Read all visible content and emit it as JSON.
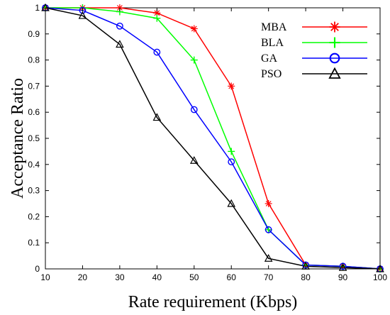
{
  "chart_data": {
    "type": "line",
    "xlabel": "Rate requirement (Kbps)",
    "ylabel": "Acceptance Ratio",
    "x": [
      10,
      20,
      30,
      40,
      50,
      60,
      70,
      80,
      90,
      100
    ],
    "xlim": [
      10,
      100
    ],
    "ylim": [
      0,
      1
    ],
    "xticks": [
      "10",
      "20",
      "30",
      "40",
      "50",
      "60",
      "70",
      "80",
      "90",
      "100"
    ],
    "yticks": [
      "0",
      "0.1",
      "0.2",
      "0.3",
      "0.4",
      "0.5",
      "0.6",
      "0.7",
      "0.8",
      "0.9",
      "1"
    ],
    "grid": false,
    "legend_position": "top-right",
    "series": [
      {
        "name": "MBA",
        "color": "#ff0000",
        "marker": "asterisk",
        "values": [
          1.0,
          1.0,
          1.0,
          0.98,
          0.92,
          0.7,
          0.25,
          0.015,
          0.01,
          0.0
        ]
      },
      {
        "name": "BLA",
        "color": "#00ff00",
        "marker": "plus",
        "values": [
          1.0,
          1.0,
          0.985,
          0.96,
          0.8,
          0.45,
          0.15,
          0.015,
          0.01,
          0.0
        ]
      },
      {
        "name": "GA",
        "color": "#0000ff",
        "marker": "circle",
        "values": [
          1.0,
          0.99,
          0.93,
          0.83,
          0.61,
          0.41,
          0.15,
          0.015,
          0.01,
          0.0
        ]
      },
      {
        "name": "PSO",
        "color": "#000000",
        "marker": "triangle",
        "values": [
          1.0,
          0.97,
          0.86,
          0.58,
          0.415,
          0.25,
          0.04,
          0.01,
          0.005,
          0.0
        ]
      }
    ]
  }
}
